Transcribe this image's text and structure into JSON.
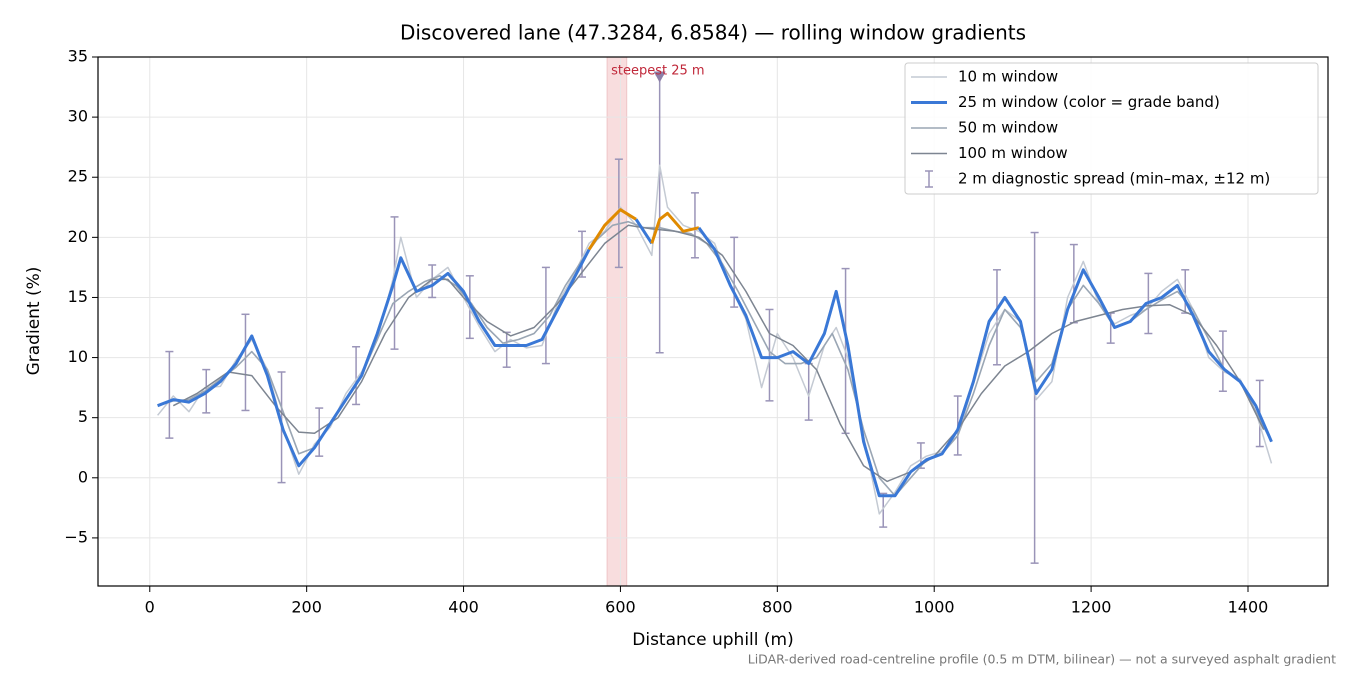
{
  "chart_data": {
    "type": "line",
    "title": "Discovered lane (47.3284, 6.8584) — rolling window gradients",
    "x_label": "Distance uphill (m)",
    "y_label": "Gradient (%)",
    "footnote": "LiDAR-derived road-centreline profile (0.5 m DTM, bilinear) — not a surveyed asphalt gradient",
    "xlim": [
      -66,
      1502
    ],
    "ylim": [
      -9,
      35
    ],
    "xticks": [
      0,
      200,
      400,
      600,
      800,
      1000,
      1200,
      1400
    ],
    "yticks": [
      -5,
      0,
      5,
      10,
      15,
      20,
      25,
      30,
      35
    ],
    "y_tick_labels": [
      {
        "value": -5,
        "label": "−5"
      }
    ],
    "grid": true,
    "legend": "upper right",
    "grade_band_threshold": 20,
    "grade_band_color": "#e08a00",
    "series": [
      {
        "name": "10 m window",
        "color": "#c4cad3",
        "width": 1.5,
        "x": [
          10,
          30,
          50,
          70,
          90,
          110,
          130,
          150,
          170,
          190,
          210,
          230,
          250,
          270,
          290,
          310,
          320,
          340,
          360,
          380,
          400,
          420,
          440,
          460,
          480,
          500,
          520,
          540,
          560,
          580,
          600,
          620,
          640,
          650,
          660,
          680,
          700,
          720,
          740,
          760,
          780,
          800,
          820,
          840,
          860,
          875,
          890,
          910,
          930,
          950,
          970,
          990,
          1010,
          1030,
          1050,
          1070,
          1090,
          1110,
          1130,
          1150,
          1170,
          1190,
          1210,
          1230,
          1250,
          1270,
          1290,
          1310,
          1330,
          1350,
          1370,
          1390,
          1410,
          1430
        ],
        "values": [
          5.2,
          6.8,
          5.5,
          7.5,
          7.6,
          9.8,
          11.5,
          9,
          4.2,
          0.3,
          2.8,
          4.2,
          7,
          8.8,
          11.5,
          16.5,
          20,
          15,
          16.5,
          17.5,
          15,
          12.6,
          10.5,
          11.5,
          10.8,
          11,
          14.5,
          16.8,
          19.5,
          20.5,
          22.5,
          21,
          18.5,
          26,
          22.5,
          21,
          20.5,
          19.5,
          16,
          13.2,
          7.5,
          12,
          10,
          6.8,
          11,
          12.5,
          10,
          3.5,
          -3,
          -1.2,
          1,
          1.8,
          2.2,
          3.5,
          7.8,
          12,
          14,
          13,
          6.5,
          8,
          15,
          18,
          14.5,
          12.8,
          13.5,
          14,
          15.5,
          16.5,
          14,
          10,
          8.8,
          8.2,
          5.5,
          1.2
        ]
      },
      {
        "name": "25 m window (color = grade band)",
        "color": "#3a78d6",
        "width": 3,
        "x": [
          10,
          30,
          50,
          70,
          90,
          110,
          130,
          150,
          170,
          190,
          210,
          230,
          250,
          270,
          290,
          310,
          320,
          340,
          360,
          380,
          400,
          420,
          440,
          460,
          480,
          500,
          520,
          540,
          560,
          580,
          600,
          620,
          640,
          650,
          660,
          680,
          700,
          720,
          740,
          760,
          780,
          800,
          820,
          840,
          860,
          875,
          890,
          910,
          930,
          950,
          970,
          990,
          1010,
          1030,
          1050,
          1070,
          1090,
          1110,
          1130,
          1150,
          1170,
          1190,
          1210,
          1230,
          1250,
          1270,
          1290,
          1310,
          1330,
          1350,
          1370,
          1390,
          1410,
          1430
        ],
        "values": [
          6,
          6.5,
          6.3,
          7,
          8,
          9.5,
          11.8,
          8.5,
          4,
          1,
          2.5,
          4.5,
          6.5,
          8.5,
          12,
          16,
          18.3,
          15.5,
          16,
          17,
          15.5,
          13,
          11,
          11,
          11,
          11.5,
          14,
          16.5,
          19,
          21,
          22.3,
          21.5,
          19.5,
          21.5,
          22,
          20.5,
          20.8,
          19,
          16,
          13.5,
          10,
          10,
          10.5,
          9.5,
          12,
          15.5,
          11,
          3,
          -1.5,
          -1.5,
          0.5,
          1.5,
          2,
          4,
          8,
          13,
          15,
          13,
          7,
          9,
          14,
          17.3,
          15,
          12.5,
          13,
          14.5,
          15,
          16,
          13.5,
          10.5,
          9,
          8,
          6,
          3
        ]
      },
      {
        "name": "50 m window",
        "color": "#9aa6b4",
        "width": 1.6,
        "x": [
          10,
          30,
          50,
          70,
          90,
          110,
          130,
          150,
          170,
          190,
          210,
          230,
          250,
          270,
          290,
          310,
          330,
          350,
          370,
          390,
          410,
          430,
          450,
          470,
          490,
          510,
          530,
          550,
          570,
          590,
          610,
          630,
          650,
          670,
          690,
          710,
          730,
          750,
          770,
          790,
          810,
          830,
          850,
          870,
          890,
          910,
          930,
          950,
          970,
          990,
          1010,
          1030,
          1050,
          1070,
          1090,
          1110,
          1130,
          1150,
          1170,
          1190,
          1210,
          1230,
          1250,
          1270,
          1290,
          1310,
          1330,
          1350,
          1370,
          1390,
          1410,
          1430
        ],
        "values": [
          6,
          6.4,
          6.5,
          7.2,
          8.2,
          9.2,
          10.5,
          9,
          5.5,
          2,
          2.5,
          4.5,
          6.5,
          8.5,
          11.5,
          14.5,
          15.5,
          16.3,
          16.8,
          16,
          14.5,
          12.5,
          11.2,
          11.5,
          12,
          13.5,
          16,
          18,
          19.8,
          21,
          21.3,
          20.8,
          20.8,
          20.5,
          20.3,
          19.5,
          17.8,
          15.5,
          13,
          10.5,
          9.5,
          9.5,
          10,
          12,
          9,
          4,
          0,
          -1.5,
          0,
          1.5,
          2,
          3.5,
          7,
          11,
          14,
          12.5,
          8,
          9.5,
          14,
          16,
          14.5,
          12.5,
          13,
          14,
          14.8,
          15.5,
          14,
          11.5,
          9,
          8,
          5.5,
          3
        ]
      },
      {
        "name": "100 m window",
        "color": "#7d8591",
        "width": 1.5,
        "x": [
          30,
          60,
          100,
          130,
          160,
          190,
          210,
          240,
          270,
          300,
          330,
          360,
          380,
          400,
          430,
          460,
          490,
          520,
          550,
          580,
          610,
          640,
          670,
          700,
          730,
          760,
          790,
          820,
          850,
          880,
          910,
          940,
          970,
          1000,
          1030,
          1060,
          1090,
          1120,
          1150,
          1180,
          1210,
          1240,
          1270,
          1300,
          1330,
          1360,
          1390,
          1420
        ],
        "values": [
          6,
          7,
          8.8,
          8.5,
          6,
          3.8,
          3.7,
          5,
          8,
          12,
          15,
          16.5,
          16.5,
          15,
          13,
          11.8,
          12.5,
          14.5,
          17,
          19.5,
          21,
          20.7,
          20.5,
          20,
          18.5,
          15.5,
          12,
          11,
          9,
          4.5,
          1,
          -0.3,
          0.5,
          1.8,
          4,
          7,
          9.3,
          10.5,
          12,
          13,
          13.5,
          14,
          14.3,
          14.4,
          13.5,
          11,
          8,
          4
        ]
      }
    ],
    "error_bars": {
      "name": "2 m diagnostic spread (min–max, ±12 m)",
      "color": "#9a94b8",
      "x": [
        25,
        72,
        122,
        168,
        216,
        263,
        312,
        360,
        408,
        455,
        505,
        551,
        598,
        650,
        695,
        745,
        790,
        840,
        887,
        935,
        983,
        1030,
        1080,
        1128,
        1178,
        1225,
        1273,
        1320,
        1368,
        1415
      ],
      "low": [
        3.3,
        5.4,
        5.6,
        -0.4,
        1.8,
        6.1,
        10.7,
        15,
        11.6,
        9.2,
        9.5,
        16.7,
        17.5,
        10.4,
        18.3,
        14.2,
        6.4,
        4.8,
        3.7,
        -4.1,
        0.8,
        1.9,
        9.4,
        -7.1,
        12.9,
        11.2,
        12,
        13.7,
        7.2,
        2.6
      ],
      "high": [
        10.5,
        9,
        13.6,
        8.8,
        5.8,
        10.9,
        21.7,
        17.7,
        16.8,
        12.1,
        17.5,
        20.5,
        26.5,
        33.5,
        23.7,
        20,
        14,
        9.5,
        17.4,
        -1.3,
        2.9,
        6.8,
        17.3,
        20.4,
        19.4,
        13.7,
        17,
        17.3,
        12.2,
        8.1
      ]
    },
    "highlight": {
      "x": [
        583,
        608
      ],
      "label": "steepest 25 m",
      "color": "#f4c7c9"
    },
    "peak_marker": {
      "x": 650,
      "y": 33.3,
      "color": "#8c7fa8"
    }
  }
}
